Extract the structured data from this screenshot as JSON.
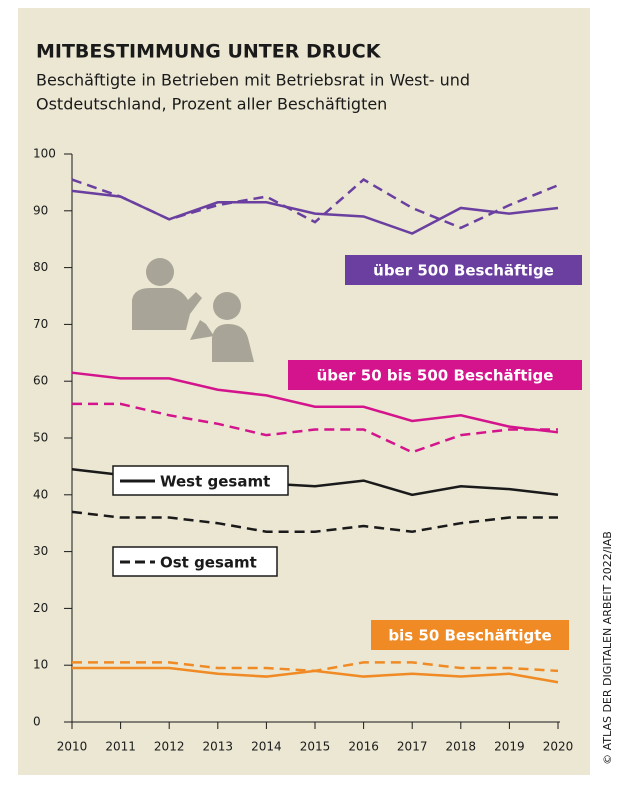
{
  "chart_data": {
    "type": "line",
    "title": "MITBESTIMMUNG UNTER DRUCK",
    "subtitle": [
      "Beschäftigte in Betrieben mit Betriebsrat in West- und",
      "Ostdeutschland, Prozent aller Beschäftigten"
    ],
    "x": [
      2010,
      2011,
      2012,
      2013,
      2014,
      2015,
      2016,
      2017,
      2018,
      2019,
      2020
    ],
    "xlim": [
      2010,
      2020
    ],
    "xticks": [
      2010,
      2011,
      2012,
      2013,
      2014,
      2015,
      2016,
      2017,
      2018,
      2019,
      2020
    ],
    "ylim": [
      0,
      100
    ],
    "yticks": [
      0,
      10,
      20,
      30,
      40,
      50,
      60,
      70,
      80,
      90,
      100
    ],
    "grid": false,
    "series": [
      {
        "name": "über 500 Beschäftige",
        "color": "#6a3fa0",
        "west": [
          93.5,
          92.5,
          88.5,
          91.5,
          91.5,
          89.5,
          89,
          86,
          90.5,
          89.5,
          90.5
        ],
        "ost": [
          95.5,
          92.5,
          88.5,
          91,
          92.5,
          88,
          95.5,
          90.5,
          87,
          91,
          94.5
        ]
      },
      {
        "name": "über 50 bis 500 Beschäftige",
        "color": "#d4148c",
        "west": [
          61.5,
          60.5,
          60.5,
          58.5,
          57.5,
          55.5,
          55.5,
          53,
          54,
          52,
          51
        ],
        "ost": [
          56,
          56,
          54,
          52.5,
          50.5,
          51.5,
          51.5,
          47.5,
          50.5,
          51.5,
          51.5
        ]
      },
      {
        "color": "#1a1a1a",
        "west": [
          44.5,
          43.5,
          42.5,
          42,
          42,
          41.5,
          42.5,
          40,
          41.5,
          41,
          40
        ],
        "ost": [
          37,
          36,
          36,
          35,
          33.5,
          33.5,
          34.5,
          33.5,
          35,
          36,
          36
        ]
      },
      {
        "name": "bis 50 Beschäftigte",
        "color": "#f08a24",
        "west": [
          9.5,
          9.5,
          9.5,
          8.5,
          8,
          9,
          8,
          8.5,
          8,
          8.5,
          7
        ],
        "ost": [
          10.5,
          10.5,
          10.5,
          9.5,
          9.5,
          9,
          10.5,
          10.5,
          9.5,
          9.5,
          9
        ]
      }
    ],
    "legend": {
      "solid": "West gesamt",
      "dashed": "Ost gesamt"
    },
    "credit": "© ATLAS DER DIGITALEN ARBEIT 2022/IAB"
  }
}
